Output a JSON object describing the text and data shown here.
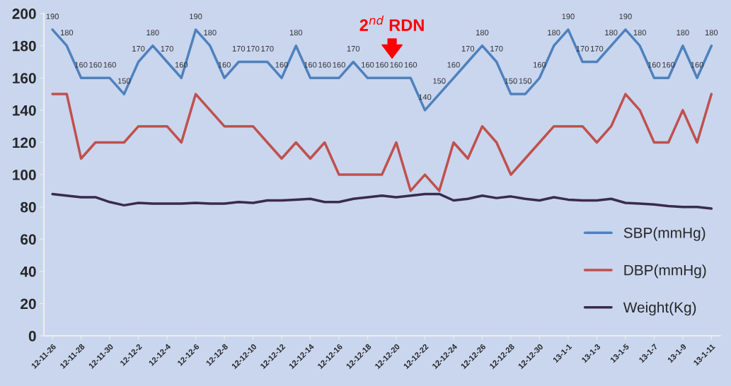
{
  "chart_data": {
    "type": "line",
    "categories": [
      "12-11-26",
      null,
      "12-11-28",
      null,
      "12-11-30",
      null,
      "12-12-2",
      null,
      "12-12-4",
      null,
      "12-12-6",
      null,
      "12-12-8",
      null,
      "12-12-10",
      null,
      "12-12-12",
      null,
      "12-12-14",
      null,
      "12-12-16",
      null,
      "12-12-18",
      null,
      "12-12-20",
      null,
      "12-12-22",
      null,
      "12-12-24",
      null,
      "12-12-26",
      null,
      "12-12-28",
      null,
      "12-12-30",
      null,
      "13-1-1",
      null,
      "13-1-3",
      null,
      "13-1-5",
      null,
      "13-1-7",
      null,
      "13-1-9",
      null,
      "13-1-11"
    ],
    "series": [
      {
        "name": "SBP(mmHg)",
        "color": "#4f81bd",
        "values": [
          190,
          180,
          160,
          160,
          160,
          150,
          170,
          180,
          170,
          160,
          190,
          180,
          160,
          170,
          170,
          170,
          160,
          180,
          160,
          160,
          160,
          170,
          160,
          160,
          160,
          160,
          140,
          150,
          160,
          170,
          180,
          170,
          150,
          150,
          160,
          180,
          190,
          170,
          170,
          180,
          190,
          180,
          160,
          160,
          180,
          160,
          180
        ],
        "value_labels": [
          "190",
          "180",
          "160",
          "160",
          "160",
          "150",
          "170",
          "180",
          "170",
          "160",
          "190",
          "180",
          "160",
          "170",
          "170",
          "170",
          "160",
          "180",
          "160",
          "160",
          "160",
          "170",
          "160",
          "160",
          "160",
          "160",
          "140",
          "150",
          "160",
          "170",
          "180",
          "170",
          "150",
          "150",
          "160",
          "180",
          "190",
          "170",
          "170",
          "180",
          "190",
          "180",
          "160",
          "160",
          "180",
          "160",
          "180"
        ]
      },
      {
        "name": "DBP(mmHg)",
        "color": "#c0504d",
        "values": [
          150,
          150,
          110,
          120,
          120,
          120,
          130,
          130,
          130,
          120,
          150,
          140,
          130,
          130,
          130,
          120,
          110,
          120,
          110,
          120,
          100,
          100,
          100,
          100,
          120,
          90,
          100,
          90,
          120,
          110,
          130,
          120,
          100,
          110,
          120,
          130,
          130,
          130,
          120,
          130,
          150,
          140,
          120,
          120,
          140,
          120,
          150
        ]
      },
      {
        "name": "Weight(Kg)",
        "color": "#3b2a4f",
        "values": [
          88,
          87,
          86,
          86,
          83,
          81,
          82.5,
          82,
          82,
          82,
          82.5,
          82,
          82,
          83,
          82.5,
          84,
          84,
          84.5,
          85,
          83,
          83,
          85,
          86,
          87,
          86,
          87,
          88,
          88,
          84,
          85,
          87,
          85.5,
          86.5,
          85,
          84,
          86,
          84.5,
          84,
          84,
          85,
          82.5,
          82,
          81.5,
          80.5,
          80,
          80,
          79
        ]
      }
    ],
    "ylim": [
      0,
      200
    ],
    "yticks": [
      0,
      20,
      40,
      60,
      80,
      100,
      120,
      140,
      160,
      180,
      200
    ],
    "legend": "right",
    "grid": false,
    "line_style": "solid",
    "marker": "none",
    "annotations": [
      "2$^{nd}$ RDN"
    ]
  }
}
